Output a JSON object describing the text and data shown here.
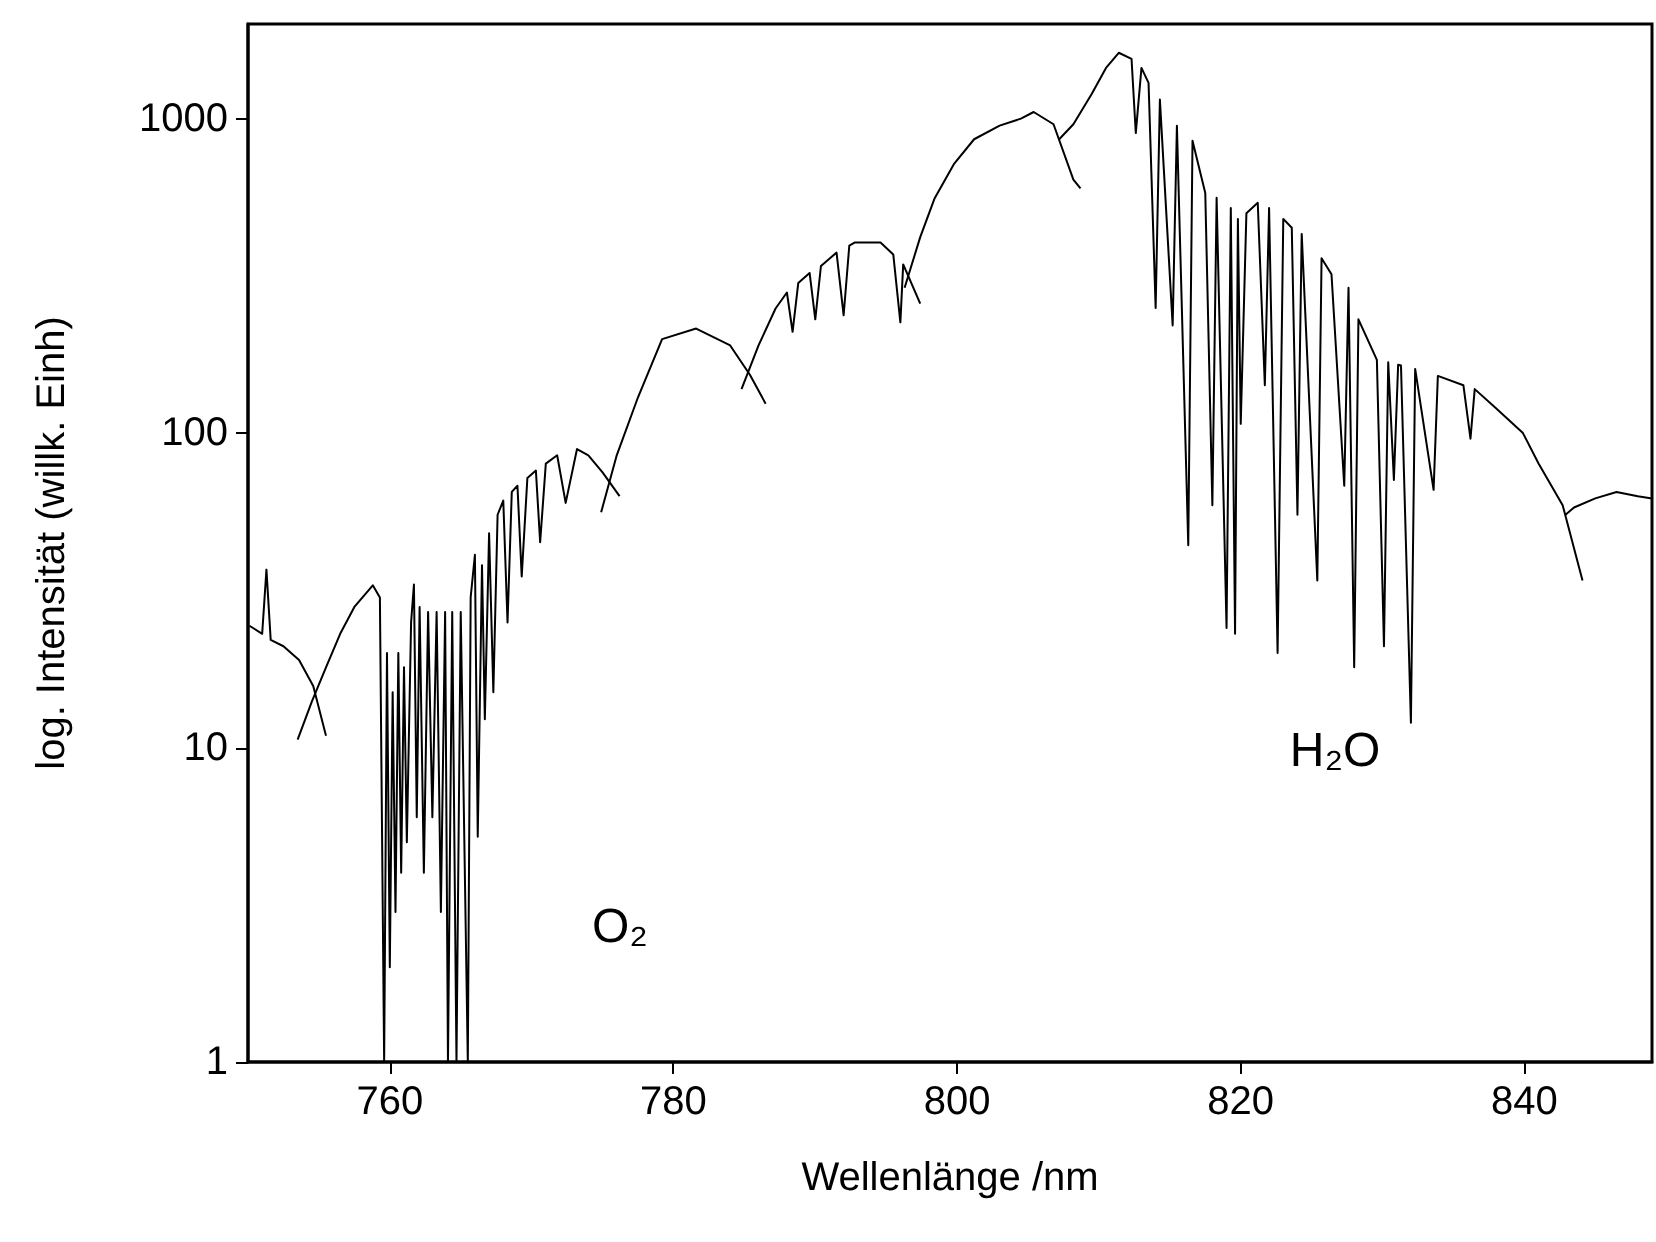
{
  "chart_data": {
    "type": "line",
    "xlabel": "Wellenlänge /nm",
    "ylabel": "log. Intensität (willk. Einh)",
    "log": "y",
    "grid": false,
    "marker": "none",
    "line_style": "solid",
    "xlim": [
      750,
      849
    ],
    "xticks": [
      760,
      780,
      800,
      820,
      840
    ],
    "ylim": [
      1,
      2000
    ],
    "yticks": [
      1,
      10,
      100,
      1000
    ],
    "annotations": [
      "O₂",
      "H₂O"
    ],
    "series": [
      {
        "color": "#000000",
        "x": [
          750.1,
          751,
          751.3,
          751.6,
          752.5,
          753.6,
          754.6,
          755.5
        ],
        "values": [
          24.4,
          23,
          36.8,
          22,
          21,
          19,
          15.7,
          10.9
        ]
      },
      {
        "color": "#000000",
        "x": [
          753.5,
          754.5,
          755.5,
          756.5,
          757.5,
          758.8,
          759.3,
          759.6,
          759.8,
          760,
          760.2,
          760.4,
          760.6,
          760.8,
          761,
          761.2,
          761.5,
          761.7,
          761.9,
          762.1,
          762.4,
          762.7,
          763,
          763.3,
          763.6,
          763.9,
          764.1,
          764.4,
          764.7,
          765,
          765.5,
          765.7,
          766,
          766.2,
          766.5,
          766.7,
          767,
          767.3,
          767.6,
          768,
          768.3,
          768.6,
          769,
          769.3,
          769.7,
          770.3,
          770.6,
          771,
          771.8,
          772.4,
          773.2,
          774,
          775,
          776.2
        ],
        "values": [
          10.6,
          14,
          18,
          23,
          28,
          32.8,
          30,
          1,
          20,
          2,
          15,
          3,
          20,
          4,
          18,
          5,
          25,
          33,
          6,
          28,
          4,
          27,
          6,
          27,
          3,
          27,
          1,
          27,
          1,
          27,
          1,
          30,
          41,
          5.2,
          38,
          12.3,
          48,
          15,
          55,
          61,
          25,
          65,
          68,
          35,
          72,
          76,
          45,
          80,
          85,
          60,
          89,
          85,
          75,
          63
        ]
      },
      {
        "color": "#000000",
        "x": [
          774.9,
          776,
          777.5,
          779.2,
          781.6,
          784,
          785.4,
          786.5
        ],
        "values": [
          56,
          85,
          130,
          199,
          215,
          190,
          153,
          124
        ]
      },
      {
        "color": "#000000",
        "x": [
          784.8,
          786,
          787.2,
          788,
          788.4,
          788.8,
          789.6,
          790,
          790.4,
          791.5,
          792,
          792.4,
          792.8,
          794.6,
          795.5,
          796,
          796.2,
          797.4
        ],
        "values": [
          138,
          190,
          249,
          280,
          210,
          300,
          323,
          230,
          340,
          375,
          237,
          395,
          404,
          404,
          370,
          225,
          344,
          258
        ]
      },
      {
        "color": "#000000",
        "x": [
          796.3,
          797.4,
          798.4,
          799.8,
          801.2,
          803,
          804.5,
          805.4,
          806.8,
          808.2,
          808.7
        ],
        "values": [
          290,
          420,
          556,
          720,
          860,
          950,
          1000,
          1050,
          960,
          640,
          600
        ]
      },
      {
        "color": "#000000",
        "x": [
          807.2,
          808.2,
          809.5,
          810.5,
          811.4,
          812.3,
          812.6,
          813,
          813.5,
          814,
          814.3,
          815.2,
          815.5,
          816.3,
          816.6,
          817.5,
          818,
          818.3,
          819,
          819.3,
          819.6,
          819.8,
          820,
          820.4,
          821.2,
          821.7,
          822,
          822.6,
          823,
          823.6,
          824,
          824.3,
          825.4,
          825.7,
          826.4,
          827.3,
          827.6,
          828,
          828.3,
          829.6,
          830.1,
          830.4,
          830.8,
          831.1,
          831.3,
          832,
          832.3,
          833.6,
          833.9,
          835.7,
          836.2,
          836.5,
          838,
          839.9,
          841,
          842.7,
          844.1
        ],
        "values": [
          860,
          960,
          1200,
          1450,
          1620,
          1550,
          900,
          1450,
          1300,
          250,
          1150,
          220,
          950,
          44,
          850,
          580,
          59,
          560,
          24,
          520,
          23,
          480,
          107,
          500,
          540,
          142,
          520,
          20,
          480,
          450,
          55,
          430,
          34,
          360,
          320,
          68,
          290,
          18,
          230,
          171,
          21,
          168,
          71,
          165,
          164,
          12,
          160,
          66,
          152,
          142,
          96,
          138,
          120,
          100,
          80,
          59,
          34
        ]
      },
      {
        "color": "#000000",
        "x": [
          842.9,
          843.5,
          845,
          846.5,
          848,
          849
        ],
        "values": [
          55,
          58,
          62,
          65,
          63,
          62
        ]
      }
    ]
  }
}
